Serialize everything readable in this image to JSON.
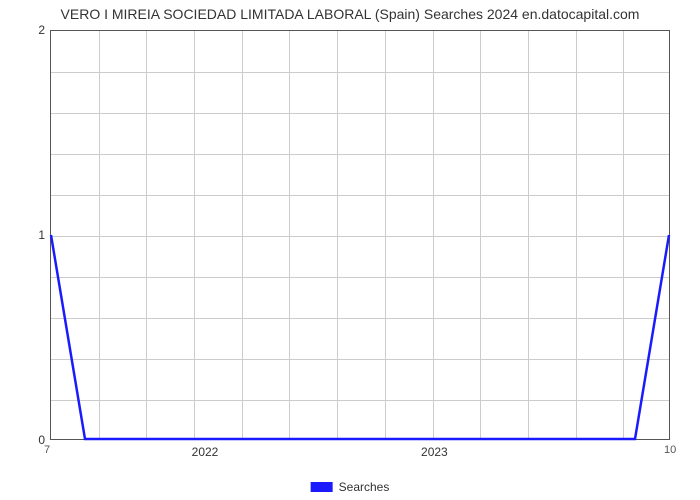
{
  "title": "VERO I MIREIA SOCIEDAD LIMITADA LABORAL (Spain) Searches 2024 en.datocapital.com",
  "chart": {
    "type": "line",
    "series_label": "Searches",
    "line_color": "#1a1aff",
    "line_width": 2.5,
    "background_color": "#ffffff",
    "grid_color": "#cccccc",
    "border_color": "#555555",
    "ylim": [
      0,
      2
    ],
    "ytick_values": [
      0,
      1,
      2
    ],
    "ytick_minor_count": 4,
    "x_categories": [
      "2022",
      "2023"
    ],
    "x_grid_count": 13,
    "points_x": [
      0.0,
      0.055,
      0.945,
      1.0
    ],
    "points_y": [
      1.0,
      0.0,
      0.0,
      1.0
    ],
    "corner_bl": "7",
    "corner_br": "10",
    "title_fontsize": 14,
    "label_fontsize": 12
  }
}
